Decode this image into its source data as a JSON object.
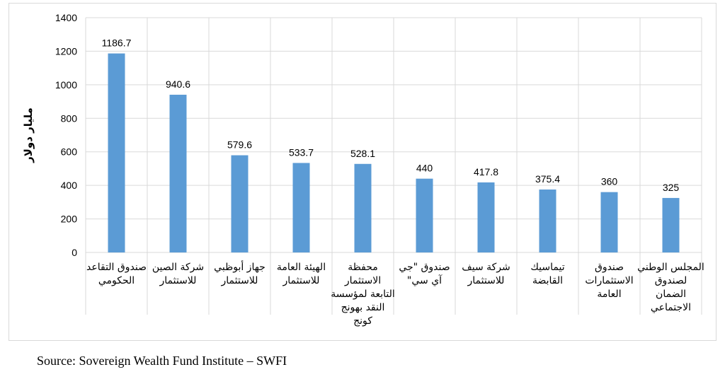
{
  "chart_data": {
    "type": "bar",
    "categories": [
      [
        "صندوق التقاعد",
        "الحكومي"
      ],
      [
        "شركة الصين",
        "للاستثمار"
      ],
      [
        "جهاز أبوظبي",
        "للاستثمار"
      ],
      [
        "الهيئة العامة",
        "للاستثمار"
      ],
      [
        "محفظة",
        "الاستثمار",
        "التابعة لمؤسسة",
        "النقد بهونج",
        "كونج"
      ],
      [
        "صندوق \"جي",
        "آي سي\""
      ],
      [
        "شركة سيف",
        "للاستثمار"
      ],
      [
        "تيماسيك",
        "القابضة"
      ],
      [
        "صندوق",
        "الاستثمارات",
        "العامة"
      ],
      [
        "المجلس الوطني",
        "لصندوق",
        "الضمان",
        "الاجتماعي"
      ]
    ],
    "values": [
      1186.7,
      940.6,
      579.6,
      533.7,
      528.1,
      440,
      417.8,
      375.4,
      360,
      325
    ],
    "value_labels": [
      "1186.7",
      "940.6",
      "579.6",
      "533.7",
      "528.1",
      "440",
      "417.8",
      "375.4",
      "360",
      "325"
    ],
    "ylabel": "مليار دولار",
    "ylim": [
      0,
      1400
    ],
    "yticks": [
      "0",
      "200",
      "400",
      "600",
      "800",
      "1000",
      "1200",
      "1400"
    ],
    "grid": true,
    "bar_color": "#5b9bd5",
    "grid_color": "#d9d9d9",
    "text_color": "#000000"
  },
  "source": "Source: Sovereign Wealth Fund Institute – SWFI"
}
